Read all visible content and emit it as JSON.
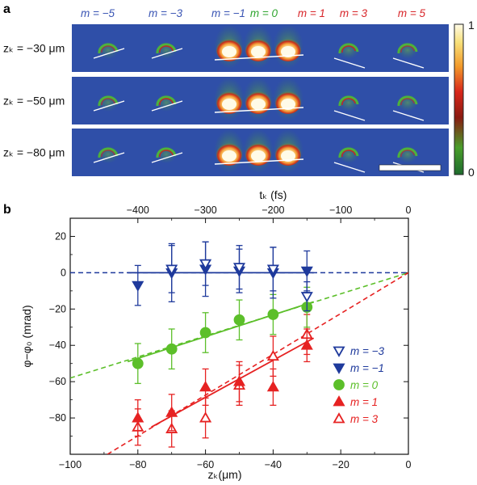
{
  "figure": {
    "panel_a_label": "a",
    "panel_b_label": "b"
  },
  "panel_a": {
    "orders": [
      {
        "label": "m = −5",
        "color": "#3a55b4"
      },
      {
        "label": "m = −3",
        "color": "#3a55b4"
      },
      {
        "label": "m = −1",
        "color": "#3a55b4"
      },
      {
        "label": "m = 0",
        "color": "#2fa52f"
      },
      {
        "label": "m = 1",
        "color": "#d8262a"
      },
      {
        "label": "m = 3",
        "color": "#d8262a"
      },
      {
        "label": "m = 5",
        "color": "#d8262a"
      }
    ],
    "rows": [
      {
        "label": "zₖ = −30 μm"
      },
      {
        "label": "zₖ = −50 μm"
      },
      {
        "label": "zₖ = −80 μm"
      }
    ],
    "colorbar": {
      "max_label": "1",
      "min_label": "0"
    },
    "colors": {
      "background": "#2f4fa8"
    }
  },
  "chart_data": {
    "type": "scatter",
    "xlabel": "zₖ(μm)",
    "ylabel": "φ−φ₀ (mrad)",
    "top_xlabel": "tₖ (fs)",
    "xlim": [
      -100,
      0
    ],
    "ylim": [
      -100,
      30
    ],
    "xticks": [
      -100,
      -80,
      -60,
      -40,
      -20,
      0
    ],
    "yticks": [
      -80,
      -60,
      -40,
      -20,
      0,
      20
    ],
    "top_ticks": [
      {
        "label": "−400",
        "x": -80
      },
      {
        "label": "−300",
        "x": -60
      },
      {
        "label": "−200",
        "x": -40
      },
      {
        "label": "−100",
        "x": -20
      },
      {
        "label": "0",
        "x": 0
      }
    ],
    "legend_position": "lower-right",
    "series": [
      {
        "name": "m = −3",
        "marker": "triangle-down-open",
        "color": "#1f3a9c",
        "points": [
          [
            -70,
            2,
            13
          ],
          [
            -60,
            5,
            12
          ],
          [
            -50,
            3,
            12
          ],
          [
            -40,
            2,
            12
          ],
          [
            -30,
            -13,
            8
          ]
        ]
      },
      {
        "name": "m = −1",
        "marker": "triangle-down-filled",
        "color": "#1f3a9c",
        "points": [
          [
            -80,
            -7,
            11
          ],
          [
            -70,
            0,
            16
          ],
          [
            -60,
            2,
            15
          ],
          [
            -50,
            1,
            12
          ],
          [
            -40,
            0,
            14
          ],
          [
            -30,
            1,
            11
          ]
        ]
      },
      {
        "name": "m = 0",
        "marker": "circle-filled",
        "color": "#5cbf2a",
        "points": [
          [
            -80,
            -50,
            11
          ],
          [
            -70,
            -42,
            11
          ],
          [
            -60,
            -33,
            11
          ],
          [
            -50,
            -26,
            11
          ],
          [
            -40,
            -23,
            11
          ],
          [
            -30,
            -19,
            11
          ]
        ]
      },
      {
        "name": "m = 1",
        "marker": "triangle-up-filled",
        "color": "#e62222",
        "points": [
          [
            -80,
            -80,
            10
          ],
          [
            -70,
            -77,
            10
          ],
          [
            -60,
            -63,
            10
          ],
          [
            -50,
            -60,
            11
          ],
          [
            -40,
            -63,
            10
          ],
          [
            -30,
            -40,
            9
          ]
        ]
      },
      {
        "name": "m = 3",
        "marker": "triangle-up-open",
        "color": "#e62222",
        "points": [
          [
            -80,
            -85,
            10
          ],
          [
            -70,
            -86,
            10
          ],
          [
            -60,
            -80,
            11
          ],
          [
            -50,
            -62,
            11
          ],
          [
            -40,
            -46,
            11
          ],
          [
            -30,
            -34,
            11
          ]
        ]
      }
    ],
    "fits": [
      {
        "color": "#1f3a9c",
        "solid": [
          [
            -83,
            0
          ],
          [
            -28,
            0
          ]
        ],
        "dashed": [
          [
            -100,
            0
          ],
          [
            0,
            0
          ]
        ]
      },
      {
        "color": "#5cbf2a",
        "solid": [
          [
            -83,
            -49
          ],
          [
            -28,
            -16
          ]
        ],
        "dashed": [
          [
            -100,
            -58
          ],
          [
            0,
            0
          ]
        ]
      },
      {
        "color": "#e62222",
        "solid": [
          [
            -76,
            -85
          ],
          [
            -28,
            -36
          ]
        ],
        "dashed": [
          [
            -89,
            -100
          ],
          [
            0,
            0
          ]
        ]
      }
    ]
  }
}
